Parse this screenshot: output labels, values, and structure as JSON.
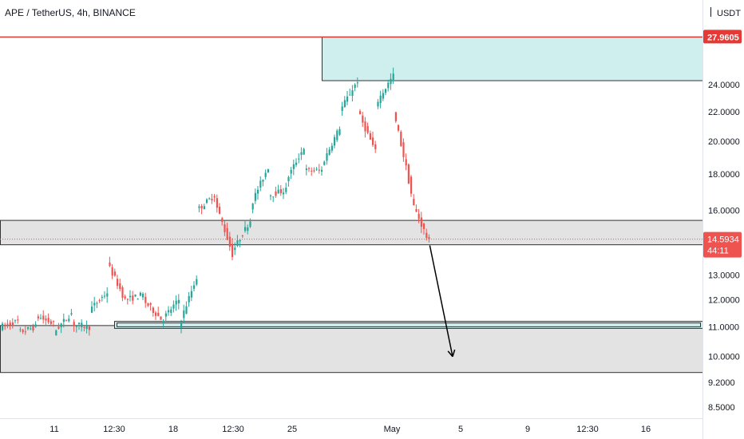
{
  "header": {
    "title": "APE / TetherUS, 4h, BINANCE",
    "unit": "USDT"
  },
  "colors": {
    "up": "#26a69a",
    "down": "#ef5350",
    "resistance_line": "#e53935",
    "zone_fill": "#cfeeee",
    "zone_border": "#333333",
    "gray_zone": "#e3e3e3",
    "price_badge": "#ef5350",
    "axis_text": "#131722"
  },
  "chart_data": {
    "type": "candlestick",
    "symbol": "APE / TetherUS",
    "interval": "4h",
    "exchange": "BINANCE",
    "y_scale": "log",
    "y_range": [
      8.2,
      31.5
    ],
    "x_ticks": [
      "11",
      "12:30",
      "18",
      "12:30",
      "25",
      "May",
      "5",
      "9",
      "12:30",
      "16"
    ],
    "y_ticks": [
      "24.0000",
      "22.0000",
      "20.0000",
      "18.0000",
      "16.0000",
      "13.0000",
      "12.0000",
      "11.0000",
      "10.0000",
      "9.2000",
      "8.5000"
    ],
    "price_labels": {
      "resistance": "27.9605",
      "last_price": "14.5934",
      "countdown": "44:11"
    },
    "levels": {
      "resistance": 27.9605,
      "last_price": 14.5934
    },
    "zones": [
      {
        "kind": "supply",
        "top": 27.9605,
        "bottom": 24.3
      },
      {
        "kind": "gray",
        "top": 15.5,
        "bottom": 14.33
      },
      {
        "kind": "gray",
        "top": 11.05,
        "bottom": 9.5
      },
      {
        "kind": "demand",
        "top": 11.2,
        "bottom": 10.95
      }
    ],
    "projection": {
      "from": 14.3,
      "to": 10.0,
      "direction": "down"
    },
    "waypoints": [
      [
        11.0,
        11.2
      ],
      [
        10.8,
        11.0
      ],
      [
        11.4,
        11.1
      ],
      [
        10.8,
        11.5
      ],
      [
        11.1,
        11.0
      ],
      [
        11.6,
        12.3
      ],
      [
        13.5,
        12.0
      ],
      [
        12.0,
        12.2
      ],
      [
        12.0,
        11.3
      ],
      [
        11.2,
        12.0
      ],
      [
        11.0,
        12.9
      ],
      [
        16.0,
        16.8
      ],
      [
        16.5,
        13.9
      ],
      [
        14.0,
        15.5
      ],
      [
        16.2,
        18.4
      ],
      [
        16.8,
        17.1
      ],
      [
        17.6,
        19.6
      ],
      [
        18.2,
        18.2
      ],
      [
        18.5,
        20.9
      ],
      [
        22.0,
        24.3
      ],
      [
        22.0,
        19.3
      ],
      [
        22.5,
        24.7
      ],
      [
        22.0,
        16.9
      ],
      [
        16.5,
        14.4
      ]
    ]
  }
}
